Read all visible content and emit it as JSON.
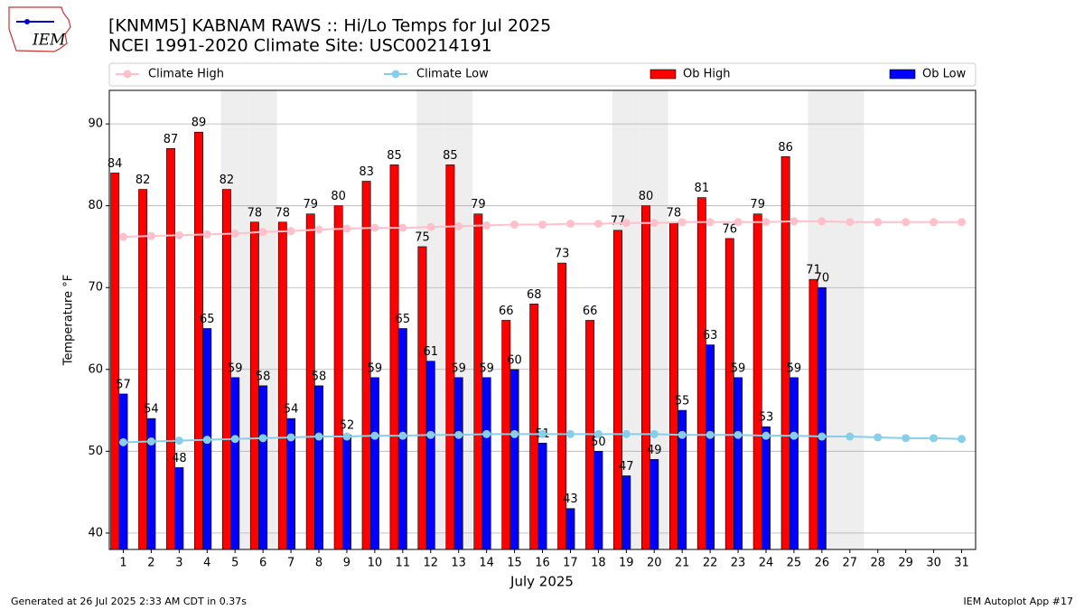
{
  "chart_data": {
    "type": "bar",
    "title": "[KNMM5] KABNAM RAWS :: Hi/Lo Temps for Jul 2025",
    "subtitle": "NCEI 1991-2020 Climate Site: USC00214191",
    "logo_text": "IEM",
    "xlabel": "July 2025",
    "ylabel": "Temperature °F",
    "footer_left": "Generated at 26 Jul 2025 2:33 AM CDT in 0.37s",
    "footer_right": "IEM Autoplot App #17",
    "x": [
      1,
      2,
      3,
      4,
      5,
      6,
      7,
      8,
      9,
      10,
      11,
      12,
      13,
      14,
      15,
      16,
      17,
      18,
      19,
      20,
      21,
      22,
      23,
      24,
      25,
      26,
      27,
      28,
      29,
      30,
      31
    ],
    "xlim": [
      0.5,
      31.5
    ],
    "ylim": [
      38,
      94.1
    ],
    "yticks": [
      40,
      50,
      60,
      70,
      80,
      90
    ],
    "grid": true,
    "shaded_days": [
      5,
      6,
      12,
      13,
      19,
      20,
      26,
      27
    ],
    "series": [
      {
        "name": "Climate High",
        "kind": "line",
        "color": "#ffc0cb",
        "values": [
          76.2,
          76.3,
          76.4,
          76.5,
          76.6,
          76.8,
          76.9,
          77.1,
          77.2,
          77.3,
          77.3,
          77.4,
          77.5,
          77.6,
          77.7,
          77.7,
          77.8,
          77.8,
          77.9,
          77.9,
          78.0,
          78.0,
          78.0,
          78.0,
          78.1,
          78.1,
          78.0,
          78.0,
          78.0,
          78.0,
          78.0
        ]
      },
      {
        "name": "Climate Low",
        "kind": "line",
        "color": "#87ceeb",
        "values": [
          51.1,
          51.2,
          51.3,
          51.4,
          51.5,
          51.6,
          51.7,
          51.8,
          51.8,
          51.9,
          51.9,
          52.0,
          52.0,
          52.1,
          52.1,
          52.1,
          52.1,
          52.1,
          52.1,
          52.1,
          52.0,
          52.0,
          52.0,
          51.9,
          51.9,
          51.8,
          51.8,
          51.7,
          51.6,
          51.6,
          51.5
        ]
      },
      {
        "name": "Ob High",
        "kind": "bar",
        "color": "#ff0000",
        "values": [
          84,
          82,
          87,
          89,
          82,
          78,
          78,
          79,
          80,
          83,
          85,
          75,
          85,
          79,
          66,
          68,
          73,
          66,
          77,
          80,
          78,
          81,
          76,
          79,
          86,
          71,
          null,
          null,
          null,
          null,
          null
        ]
      },
      {
        "name": "Ob Low",
        "kind": "bar",
        "color": "#0000ff",
        "values": [
          57,
          54,
          48,
          65,
          59,
          58,
          54,
          58,
          52,
          59,
          65,
          61,
          59,
          59,
          60,
          51,
          43,
          50,
          47,
          49,
          55,
          63,
          59,
          53,
          59,
          70,
          null,
          null,
          null,
          null,
          null
        ]
      }
    ]
  }
}
